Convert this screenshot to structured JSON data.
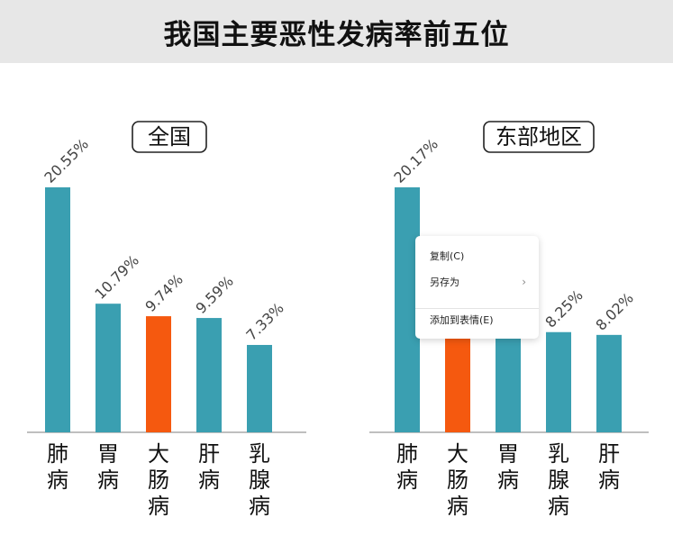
{
  "title": "我国主要恶性发病率前五位",
  "colors": {
    "teal": "#3a9fb1",
    "highlight": "#f5590f"
  },
  "chart_data": [
    {
      "type": "bar",
      "title": "全国",
      "categories": [
        "肺病",
        "胃病",
        "大肠病",
        "肝病",
        "乳腺病"
      ],
      "values": [
        20.55,
        10.79,
        9.74,
        9.59,
        7.33
      ],
      "value_labels": [
        "20.55%",
        "10.79%",
        "9.74%",
        "9.59%",
        "7.33%"
      ],
      "highlight_index": 2,
      "ylim": [
        0,
        20.55
      ]
    },
    {
      "type": "bar",
      "title": "东部地区",
      "categories": [
        "肺病",
        "大肠病",
        "胃病",
        "乳腺病",
        "肝病"
      ],
      "values": [
        20.17,
        12.4,
        8.6,
        8.25,
        8.02
      ],
      "value_labels": [
        "20.17%",
        "",
        "",
        "8.25%",
        "8.02%"
      ],
      "highlight_index": 1,
      "ylim": [
        0,
        20.17
      ]
    }
  ],
  "context_menu": {
    "items": [
      {
        "label": "复制(C)"
      },
      {
        "label": "另存为",
        "chevron": "›"
      },
      {
        "label": "添加到表情(E)"
      }
    ]
  }
}
